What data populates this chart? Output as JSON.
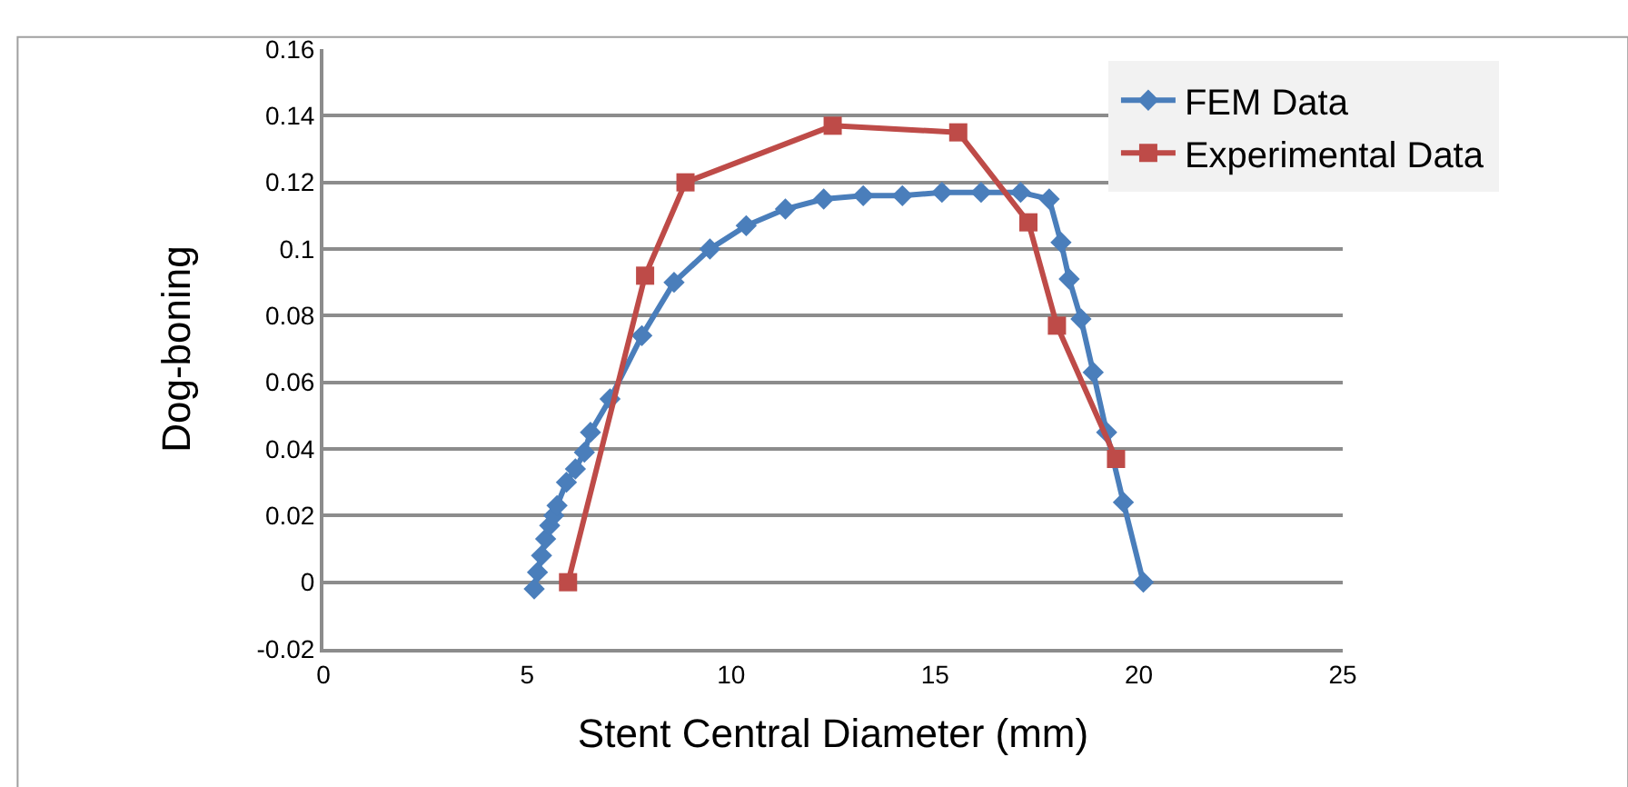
{
  "chart_data": {
    "type": "line",
    "xlabel": "Stent Central Diameter (mm)",
    "ylabel": "Dog-boning",
    "xlim": [
      0,
      25
    ],
    "xticks": [
      0,
      5,
      10,
      15,
      20,
      25
    ],
    "ylim": [
      -0.02,
      0.16
    ],
    "yticks": [
      -0.02,
      0,
      0.02,
      0.04,
      0.06,
      0.08,
      0.1,
      0.12,
      0.14,
      0.16
    ],
    "grid": "y",
    "legend": "top right",
    "line_style": "solid",
    "series": [
      {
        "name": "FEM Data",
        "color": "#4a7ebb",
        "marker": "diamond",
        "x": [
          5.17,
          5.25,
          5.35,
          5.45,
          5.55,
          5.65,
          5.73,
          5.96,
          6.18,
          6.4,
          6.55,
          7.03,
          7.81,
          8.6,
          9.48,
          10.37,
          11.33,
          12.27,
          13.24,
          14.2,
          15.17,
          16.13,
          17.1,
          17.8,
          18.09,
          18.29,
          18.58,
          18.88,
          19.21,
          19.62,
          20.11
        ],
        "values": [
          -0.002,
          0.003,
          0.008,
          0.013,
          0.017,
          0.02,
          0.023,
          0.03,
          0.034,
          0.039,
          0.045,
          0.055,
          0.074,
          0.09,
          0.1,
          0.107,
          0.112,
          0.115,
          0.116,
          0.116,
          0.117,
          0.117,
          0.117,
          0.115,
          0.102,
          0.091,
          0.079,
          0.063,
          0.045,
          0.024,
          0.0
        ]
      },
      {
        "name": "Experimental Data",
        "color": "#be4b48",
        "marker": "square",
        "x": [
          6.0,
          7.89,
          8.88,
          12.49,
          15.57,
          17.29,
          17.99,
          19.44
        ],
        "values": [
          0.0,
          0.092,
          0.12,
          0.137,
          0.135,
          0.108,
          0.077,
          0.037
        ]
      }
    ]
  }
}
